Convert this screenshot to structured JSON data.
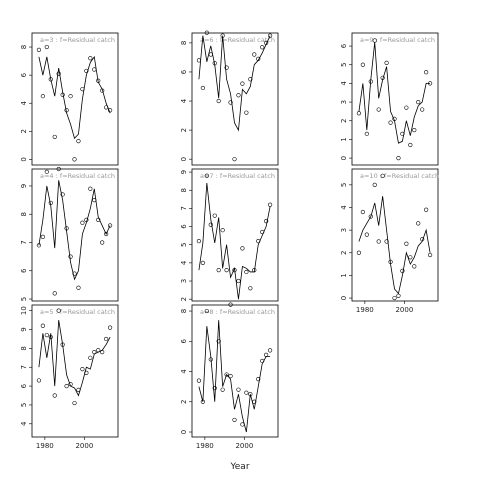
{
  "chart_data": [
    {
      "type": "line",
      "title": "a=3  :  f=Residual catch",
      "x": [
        1977,
        1979,
        1981,
        1983,
        1985,
        1987,
        1989,
        1991,
        1993,
        1995,
        1997,
        1999,
        2001,
        2003,
        2005,
        2007,
        2009,
        2011,
        2013
      ],
      "series": [
        {
          "color": "#000000",
          "marker": "circle",
          "values": [
            7.8,
            4.5,
            8.0,
            5.7,
            1.6,
            6.1,
            4.6,
            3.5,
            4.5,
            0.0,
            1.3,
            5.0,
            6.3,
            7.2,
            6.4,
            5.6,
            4.9,
            3.7,
            3.5
          ]
        },
        {
          "color": "#000000",
          "marker": "none",
          "values": [
            7.3,
            6.0,
            7.3,
            5.7,
            4.5,
            6.5,
            4.8,
            3.3,
            2.5,
            1.5,
            1.8,
            4.3,
            6.0,
            6.9,
            7.3,
            5.5,
            5.0,
            4.0,
            3.3
          ]
        }
      ],
      "xlim": [
        1973.5,
        2017
      ],
      "ylim": [
        -0.4,
        9.0
      ],
      "yticks": [
        0,
        2,
        4,
        6,
        8
      ]
    },
    {
      "type": "line",
      "title": "a=4  :  f=Residual catch",
      "x": [
        1977,
        1979,
        1981,
        1983,
        1985,
        1987,
        1989,
        1991,
        1993,
        1995,
        1997,
        1999,
        2001,
        2003,
        2005,
        2007,
        2009,
        2011,
        2013
      ],
      "series": [
        {
          "color": "#000000",
          "marker": "circle",
          "values": [
            6.9,
            7.2,
            9.5,
            8.4,
            5.2,
            9.6,
            8.7,
            7.5,
            6.5,
            5.9,
            5.4,
            7.7,
            7.8,
            8.9,
            8.5,
            7.8,
            7.0,
            7.3,
            7.6
          ]
        },
        {
          "color": "#000000",
          "marker": "none",
          "values": [
            6.9,
            7.8,
            9.0,
            8.3,
            6.8,
            9.2,
            8.5,
            7.4,
            6.3,
            5.7,
            6.0,
            7.3,
            7.7,
            8.2,
            8.9,
            7.9,
            7.6,
            7.3,
            7.6
          ]
        }
      ],
      "xlim": [
        1973.5,
        2017
      ],
      "ylim": [
        4.93,
        9.6
      ],
      "yticks": [
        5,
        6,
        7,
        8,
        9
      ]
    },
    {
      "type": "line",
      "title": "a=5  :  f=Residual catch",
      "x": [
        1977,
        1979,
        1981,
        1983,
        1985,
        1987,
        1989,
        1991,
        1993,
        1995,
        1997,
        1999,
        2001,
        2003,
        2005,
        2007,
        2009,
        2011,
        2013
      ],
      "series": [
        {
          "color": "#000000",
          "marker": "circle",
          "values": [
            6.3,
            9.2,
            8.7,
            8.6,
            5.5,
            10.0,
            8.2,
            6.0,
            6.1,
            5.1,
            5.8,
            6.9,
            6.7,
            7.5,
            7.8,
            7.9,
            7.8,
            8.5,
            9.1
          ]
        },
        {
          "color": "#000000",
          "marker": "none",
          "values": [
            7.0,
            8.8,
            7.5,
            8.8,
            6.0,
            9.5,
            8.2,
            6.6,
            6.0,
            5.9,
            5.5,
            6.2,
            7.0,
            6.9,
            7.7,
            7.8,
            7.9,
            8.2,
            8.6
          ]
        }
      ],
      "xlim": [
        1973.5,
        2017
      ],
      "ylim": [
        3.3,
        10.3
      ],
      "yticks": [
        4,
        5,
        6,
        7,
        8,
        9,
        10
      ],
      "xticks": [
        1980,
        2000
      ]
    },
    {
      "type": "line",
      "title": "a=6  :  f=Residual catch",
      "x": [
        1977,
        1979,
        1981,
        1983,
        1985,
        1987,
        1989,
        1991,
        1993,
        1995,
        1997,
        1999,
        2001,
        2003,
        2005,
        2007,
        2009,
        2011,
        2013
      ],
      "series": [
        {
          "color": "#000000",
          "marker": "circle",
          "values": [
            6.8,
            4.9,
            8.7,
            7.2,
            6.6,
            4.0,
            8.5,
            6.3,
            3.9,
            0.0,
            4.4,
            5.2,
            3.2,
            5.5,
            7.2,
            6.9,
            7.7,
            8.0,
            8.5
          ]
        },
        {
          "color": "#000000",
          "marker": "none",
          "values": [
            5.5,
            8.5,
            6.7,
            7.8,
            6.5,
            4.2,
            8.5,
            5.5,
            4.5,
            2.5,
            2.0,
            4.8,
            4.5,
            5.0,
            6.5,
            6.8,
            7.3,
            7.9,
            8.5
          ]
        }
      ],
      "xlim": [
        1973.5,
        2017
      ],
      "ylim": [
        -0.4,
        8.68
      ],
      "yticks": [
        0,
        2,
        4,
        6,
        8
      ]
    },
    {
      "type": "line",
      "title": "a=7  :  f=Residual catch",
      "x": [
        1977,
        1979,
        1981,
        1983,
        1985,
        1987,
        1989,
        1991,
        1993,
        1995,
        1997,
        1999,
        2001,
        2003,
        2005,
        2007,
        2009,
        2011,
        2013
      ],
      "series": [
        {
          "color": "#000000",
          "marker": "circle",
          "values": [
            5.2,
            4.0,
            8.8,
            6.1,
            6.6,
            3.6,
            5.8,
            3.6,
            1.7,
            3.6,
            3.0,
            4.8,
            3.5,
            2.6,
            3.6,
            5.2,
            5.7,
            6.3,
            7.2
          ]
        },
        {
          "color": "#000000",
          "marker": "none",
          "values": [
            3.6,
            5.1,
            8.4,
            6.4,
            5.1,
            6.5,
            3.7,
            5.0,
            3.2,
            3.7,
            2.0,
            3.8,
            3.7,
            3.5,
            3.5,
            5.0,
            5.5,
            6.0,
            7.1
          ]
        }
      ],
      "xlim": [
        1973.5,
        2017
      ],
      "ylim": [
        1.9,
        9.17
      ],
      "yticks": [
        2,
        3,
        4,
        5,
        6,
        7,
        8,
        9
      ]
    },
    {
      "type": "line",
      "title": "a=8  :  f=Residual catch",
      "x": [
        1977,
        1979,
        1981,
        1983,
        1985,
        1987,
        1989,
        1991,
        1993,
        1995,
        1997,
        1999,
        2001,
        2003,
        2005,
        2007,
        2009,
        2011,
        2013
      ],
      "series": [
        {
          "color": "#000000",
          "marker": "circle",
          "values": [
            3.4,
            2.0,
            8.0,
            4.8,
            2.9,
            6.0,
            2.8,
            3.8,
            3.7,
            0.8,
            2.8,
            0.5,
            2.6,
            2.5,
            2.0,
            3.5,
            4.7,
            5.1,
            5.4
          ]
        },
        {
          "color": "#000000",
          "marker": "none",
          "values": [
            3.0,
            2.0,
            7.0,
            5.0,
            2.0,
            7.4,
            3.0,
            3.8,
            3.5,
            1.5,
            2.5,
            1.0,
            0.0,
            2.5,
            1.5,
            3.0,
            4.5,
            5.0,
            5.0
          ]
        }
      ],
      "xlim": [
        1973.5,
        2017
      ],
      "ylim": [
        -0.33,
        8.4
      ],
      "yticks": [
        0,
        2,
        4,
        6,
        8
      ],
      "xticks": [
        1980,
        2000
      ]
    },
    {
      "type": "line",
      "title": "a=9  :  f=Residual catch",
      "x": [
        1977,
        1979,
        1981,
        1983,
        1985,
        1987,
        1989,
        1991,
        1993,
        1995,
        1997,
        1999,
        2001,
        2003,
        2005,
        2007,
        2009,
        2011,
        2013
      ],
      "series": [
        {
          "color": "#000000",
          "marker": "circle",
          "values": [
            2.4,
            5.0,
            1.3,
            4.1,
            6.3,
            2.6,
            4.3,
            5.1,
            1.9,
            2.1,
            0.0,
            1.3,
            2.7,
            0.7,
            1.5,
            3.0,
            2.6,
            4.6,
            4.0
          ]
        },
        {
          "color": "#000000",
          "marker": "none",
          "values": [
            2.5,
            4.0,
            1.5,
            4.2,
            6.2,
            3.2,
            4.2,
            4.9,
            2.5,
            2.0,
            0.8,
            0.9,
            2.0,
            1.2,
            2.2,
            2.8,
            3.0,
            4.0,
            4.0
          ]
        }
      ],
      "xlim": [
        1973.5,
        2017
      ],
      "ylim": [
        -0.37,
        6.7
      ],
      "yticks": [
        0,
        1,
        2,
        3,
        4,
        5,
        6
      ]
    },
    {
      "type": "line",
      "title": "a=10  :  f=Residual catch",
      "x": [
        1977,
        1979,
        1981,
        1983,
        1985,
        1987,
        1989,
        1991,
        1993,
        1995,
        1997,
        1999,
        2001,
        2003,
        2005,
        2007,
        2009,
        2011,
        2013
      ],
      "series": [
        {
          "color": "#000000",
          "marker": "circle",
          "values": [
            2.0,
            3.8,
            2.8,
            3.6,
            5.0,
            2.5,
            5.4,
            2.5,
            1.6,
            0.0,
            0.1,
            1.2,
            2.4,
            1.8,
            1.4,
            3.3,
            2.6,
            3.9,
            1.9
          ]
        },
        {
          "color": "#000000",
          "marker": "none",
          "values": [
            2.5,
            3.0,
            3.3,
            3.6,
            4.2,
            3.2,
            4.5,
            3.0,
            1.5,
            0.4,
            0.2,
            1.0,
            2.0,
            1.5,
            1.8,
            2.3,
            2.5,
            3.0,
            2.0
          ]
        }
      ],
      "xlim": [
        1973.5,
        2017
      ],
      "ylim": [
        -0.13,
        5.7
      ],
      "yticks": [
        0,
        1,
        2,
        3,
        4,
        5
      ],
      "xticks": [
        1980,
        2000
      ]
    }
  ],
  "xlabel": "Year"
}
